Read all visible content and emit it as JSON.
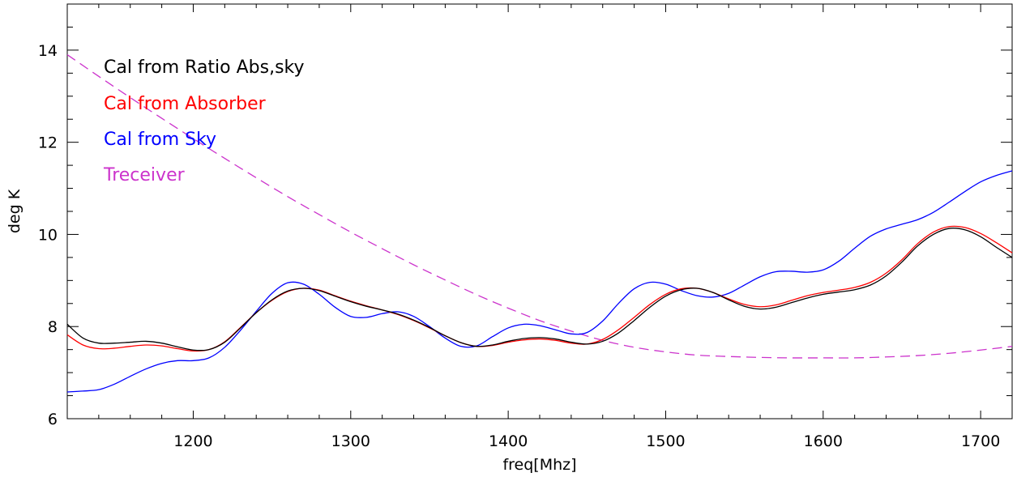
{
  "chart_data": {
    "type": "line",
    "title": "",
    "xlabel": "freq[Mhz]",
    "ylabel": "deg K",
    "xlim": [
      1120,
      1720
    ],
    "ylim": [
      6,
      15
    ],
    "x_ticks": [
      1200,
      1300,
      1400,
      1500,
      1600,
      1700
    ],
    "x_tick_labels": [
      "1200",
      "1300",
      "1400",
      "1500",
      "1600",
      "1700"
    ],
    "y_ticks": [
      6,
      8,
      10,
      12,
      14
    ],
    "y_tick_labels": [
      "6",
      "8",
      "10",
      "12",
      "14"
    ],
    "grid": false,
    "legend_position": "top-left",
    "series": [
      {
        "name": "Cal from Ratio Abs,sky",
        "color": "#000000",
        "dash": "solid",
        "x": [
          1120,
          1130,
          1140,
          1150,
          1160,
          1170,
          1180,
          1190,
          1200,
          1210,
          1220,
          1230,
          1240,
          1250,
          1260,
          1270,
          1280,
          1290,
          1300,
          1310,
          1320,
          1330,
          1340,
          1350,
          1360,
          1370,
          1380,
          1390,
          1400,
          1410,
          1420,
          1430,
          1440,
          1450,
          1460,
          1470,
          1480,
          1490,
          1500,
          1510,
          1520,
          1530,
          1540,
          1550,
          1560,
          1570,
          1580,
          1590,
          1600,
          1610,
          1620,
          1630,
          1640,
          1650,
          1660,
          1670,
          1680,
          1690,
          1700,
          1710,
          1720
        ],
        "y": [
          8.05,
          7.75,
          7.64,
          7.64,
          7.66,
          7.68,
          7.64,
          7.56,
          7.49,
          7.5,
          7.66,
          7.97,
          8.3,
          8.58,
          8.77,
          8.83,
          8.78,
          8.66,
          8.54,
          8.44,
          8.36,
          8.27,
          8.14,
          7.98,
          7.8,
          7.65,
          7.57,
          7.6,
          7.68,
          7.74,
          7.76,
          7.73,
          7.66,
          7.62,
          7.68,
          7.86,
          8.13,
          8.42,
          8.66,
          8.8,
          8.83,
          8.74,
          8.58,
          8.44,
          8.38,
          8.42,
          8.52,
          8.62,
          8.7,
          8.75,
          8.8,
          8.9,
          9.1,
          9.4,
          9.75,
          10.0,
          10.13,
          10.1,
          9.95,
          9.72,
          9.5
        ]
      },
      {
        "name": "Cal from Absorber",
        "color": "#ff0000",
        "dash": "solid",
        "x": [
          1120,
          1130,
          1140,
          1150,
          1160,
          1170,
          1180,
          1190,
          1200,
          1210,
          1220,
          1230,
          1240,
          1250,
          1260,
          1270,
          1280,
          1290,
          1300,
          1310,
          1320,
          1330,
          1340,
          1350,
          1360,
          1370,
          1380,
          1390,
          1400,
          1410,
          1420,
          1430,
          1440,
          1450,
          1460,
          1470,
          1480,
          1490,
          1500,
          1510,
          1520,
          1530,
          1540,
          1550,
          1560,
          1570,
          1580,
          1590,
          1600,
          1610,
          1620,
          1630,
          1640,
          1650,
          1660,
          1670,
          1680,
          1690,
          1700,
          1710,
          1720
        ],
        "y": [
          7.82,
          7.6,
          7.52,
          7.53,
          7.57,
          7.6,
          7.58,
          7.52,
          7.47,
          7.5,
          7.67,
          7.98,
          8.3,
          8.57,
          8.76,
          8.83,
          8.79,
          8.67,
          8.55,
          8.45,
          8.36,
          8.26,
          8.13,
          7.97,
          7.8,
          7.65,
          7.57,
          7.59,
          7.66,
          7.71,
          7.73,
          7.7,
          7.64,
          7.62,
          7.72,
          7.93,
          8.2,
          8.48,
          8.7,
          8.82,
          8.83,
          8.74,
          8.6,
          8.48,
          8.43,
          8.47,
          8.57,
          8.67,
          8.74,
          8.79,
          8.85,
          8.96,
          9.16,
          9.45,
          9.8,
          10.05,
          10.17,
          10.15,
          10.02,
          9.82,
          9.6
        ]
      },
      {
        "name": "Cal from Sky",
        "color": "#0000ff",
        "dash": "solid",
        "x": [
          1120,
          1130,
          1140,
          1150,
          1160,
          1170,
          1180,
          1190,
          1200,
          1210,
          1220,
          1230,
          1240,
          1250,
          1260,
          1270,
          1280,
          1290,
          1300,
          1310,
          1320,
          1330,
          1340,
          1350,
          1360,
          1370,
          1380,
          1390,
          1400,
          1410,
          1420,
          1430,
          1440,
          1450,
          1460,
          1470,
          1480,
          1490,
          1500,
          1510,
          1520,
          1530,
          1540,
          1550,
          1560,
          1570,
          1580,
          1590,
          1600,
          1610,
          1620,
          1630,
          1640,
          1650,
          1660,
          1670,
          1680,
          1690,
          1700,
          1710,
          1720
        ],
        "y": [
          6.58,
          6.6,
          6.63,
          6.75,
          6.92,
          7.08,
          7.2,
          7.26,
          7.26,
          7.32,
          7.55,
          7.92,
          8.33,
          8.72,
          8.95,
          8.92,
          8.7,
          8.42,
          8.22,
          8.2,
          8.28,
          8.32,
          8.22,
          8.0,
          7.75,
          7.57,
          7.58,
          7.78,
          7.97,
          8.05,
          8.02,
          7.93,
          7.84,
          7.87,
          8.12,
          8.5,
          8.82,
          8.96,
          8.92,
          8.78,
          8.67,
          8.64,
          8.72,
          8.9,
          9.08,
          9.19,
          9.2,
          9.18,
          9.23,
          9.42,
          9.7,
          9.96,
          10.12,
          10.22,
          10.32,
          10.48,
          10.7,
          10.93,
          11.14,
          11.28,
          11.38
        ]
      },
      {
        "name": "Treceiver",
        "color": "#cc33cc",
        "dash": "dashed",
        "x": [
          1120,
          1140,
          1160,
          1180,
          1200,
          1220,
          1240,
          1260,
          1280,
          1300,
          1320,
          1340,
          1360,
          1380,
          1400,
          1420,
          1440,
          1460,
          1480,
          1500,
          1520,
          1540,
          1560,
          1580,
          1600,
          1620,
          1640,
          1660,
          1680,
          1700,
          1720
        ],
        "y": [
          13.9,
          13.43,
          12.97,
          12.52,
          12.08,
          11.65,
          11.23,
          10.82,
          10.43,
          10.05,
          9.69,
          9.34,
          9.01,
          8.69,
          8.4,
          8.13,
          7.9,
          7.7,
          7.55,
          7.45,
          7.38,
          7.35,
          7.33,
          7.32,
          7.32,
          7.32,
          7.34,
          7.37,
          7.42,
          7.49,
          7.57
        ]
      }
    ]
  }
}
